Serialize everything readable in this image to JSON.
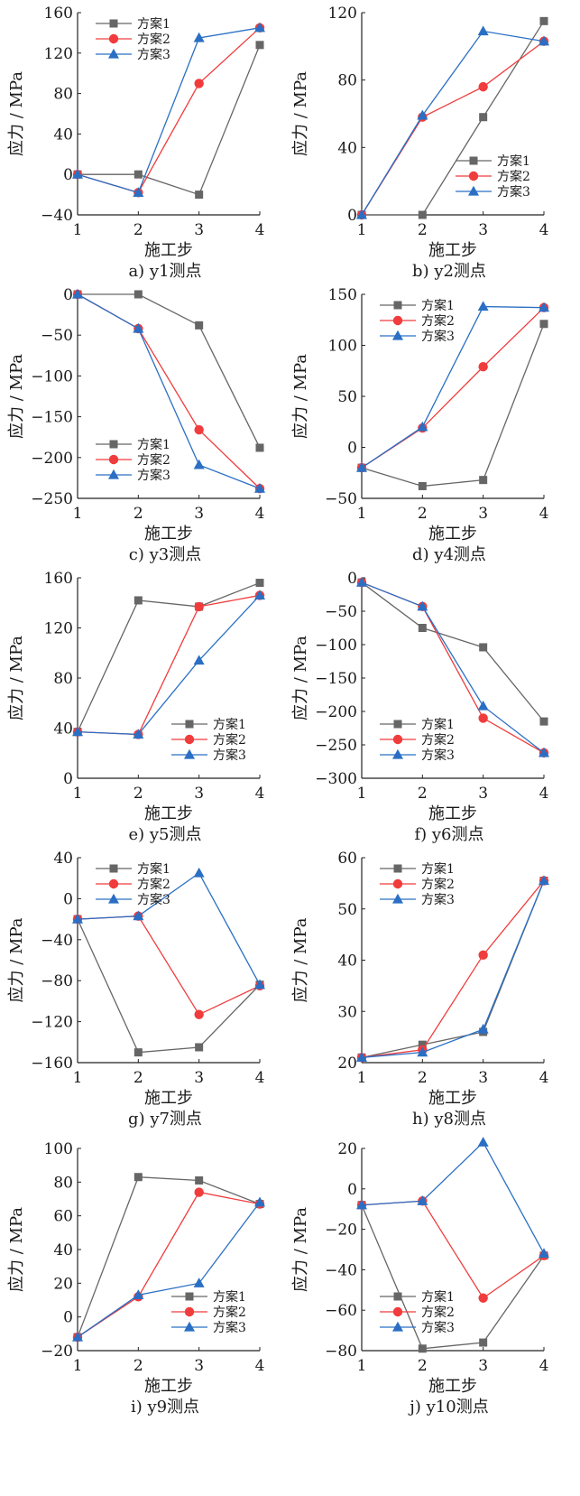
{
  "common": {
    "xlabel": "施工步",
    "ylabel": "应力 / MPa",
    "x": [
      1,
      2,
      3,
      4
    ],
    "series_names": [
      "方案1",
      "方案2",
      "方案3"
    ],
    "colors": [
      "#666666",
      "#f03c3c",
      "#2a6fc4"
    ],
    "markers": [
      "square",
      "circle",
      "triangle"
    ]
  },
  "chart_data": [
    {
      "type": "line",
      "caption": "a) y1测点",
      "xlabel": "施工步",
      "ylabel": "应力 / MPa",
      "ylim": [
        -40,
        160
      ],
      "yticks": [
        -40,
        0,
        40,
        80,
        120,
        160
      ],
      "legend": "top-left",
      "series": [
        {
          "name": "方案1",
          "values": [
            0,
            0,
            -20,
            128
          ]
        },
        {
          "name": "方案2",
          "values": [
            0,
            -18,
            90,
            145
          ]
        },
        {
          "name": "方案3",
          "values": [
            0,
            -18,
            135,
            145
          ]
        }
      ]
    },
    {
      "type": "line",
      "caption": "b) y2测点",
      "xlabel": "施工步",
      "ylabel": "应力 / MPa",
      "ylim": [
        0,
        120
      ],
      "yticks": [
        0,
        40,
        80,
        120
      ],
      "legend": "bottom-right",
      "series": [
        {
          "name": "方案1",
          "values": [
            0,
            0,
            58,
            115
          ]
        },
        {
          "name": "方案2",
          "values": [
            0,
            58,
            76,
            103
          ]
        },
        {
          "name": "方案3",
          "values": [
            0,
            59,
            109,
            103
          ]
        }
      ]
    },
    {
      "type": "line",
      "caption": "c) y3测点",
      "xlabel": "施工步",
      "ylabel": "应力 / MPa",
      "ylim": [
        -250,
        0
      ],
      "yticks": [
        -250,
        -200,
        -150,
        -100,
        -50,
        0
      ],
      "legend": "bottom-left",
      "series": [
        {
          "name": "方案1",
          "values": [
            0,
            0,
            -38,
            -188
          ]
        },
        {
          "name": "方案2",
          "values": [
            0,
            -42,
            -166,
            -238
          ]
        },
        {
          "name": "方案3",
          "values": [
            0,
            -42,
            -209,
            -238
          ]
        }
      ]
    },
    {
      "type": "line",
      "caption": "d) y4测点",
      "xlabel": "施工步",
      "ylabel": "应力 / MPa",
      "ylim": [
        -50,
        150
      ],
      "yticks": [
        -50,
        0,
        50,
        100,
        150
      ],
      "legend": "top-left",
      "series": [
        {
          "name": "方案1",
          "values": [
            -20,
            -38,
            -32,
            121
          ]
        },
        {
          "name": "方案2",
          "values": [
            -20,
            19,
            79,
            137
          ]
        },
        {
          "name": "方案3",
          "values": [
            -20,
            20,
            138,
            137
          ]
        }
      ]
    },
    {
      "type": "line",
      "caption": "e) y5测点",
      "xlabel": "施工步",
      "ylabel": "应力 / MPa",
      "ylim": [
        0,
        160
      ],
      "yticks": [
        0,
        40,
        80,
        120,
        160
      ],
      "legend": "bottom-right",
      "series": [
        {
          "name": "方案1",
          "values": [
            37,
            142,
            137,
            156
          ]
        },
        {
          "name": "方案2",
          "values": [
            37,
            35,
            137,
            146
          ]
        },
        {
          "name": "方案3",
          "values": [
            37,
            35,
            94,
            146
          ]
        }
      ]
    },
    {
      "type": "line",
      "caption": "f) y6测点",
      "xlabel": "施工步",
      "ylabel": "应力 / MPa",
      "ylim": [
        -300,
        0
      ],
      "yticks": [
        -300,
        -250,
        -200,
        -150,
        -100,
        -50,
        0
      ],
      "legend": "bottom-left",
      "series": [
        {
          "name": "方案1",
          "values": [
            -7,
            -75,
            -104,
            -215
          ]
        },
        {
          "name": "方案2",
          "values": [
            -7,
            -43,
            -210,
            -262
          ]
        },
        {
          "name": "方案3",
          "values": [
            -7,
            -43,
            -192,
            -262
          ]
        }
      ]
    },
    {
      "type": "line",
      "caption": "g) y7测点",
      "xlabel": "施工步",
      "ylabel": "应力 / MPa",
      "ylim": [
        -160,
        40
      ],
      "yticks": [
        -160,
        -120,
        -80,
        -40,
        0,
        40
      ],
      "legend": "top-left",
      "series": [
        {
          "name": "方案1",
          "values": [
            -20,
            -150,
            -145,
            -84
          ]
        },
        {
          "name": "方案2",
          "values": [
            -20,
            -17,
            -113,
            -85
          ]
        },
        {
          "name": "方案3",
          "values": [
            -20,
            -17,
            25,
            -84
          ]
        }
      ]
    },
    {
      "type": "line",
      "caption": "h) y8测点",
      "xlabel": "施工步",
      "ylabel": "应力 / MPa",
      "ylim": [
        20,
        60
      ],
      "yticks": [
        20,
        30,
        40,
        50,
        60
      ],
      "legend": "top-left",
      "series": [
        {
          "name": "方案1",
          "values": [
            21,
            23.5,
            26,
            55.5
          ]
        },
        {
          "name": "方案2",
          "values": [
            21,
            22.5,
            41,
            55.5
          ]
        },
        {
          "name": "方案3",
          "values": [
            21,
            22,
            26.5,
            55.5
          ]
        }
      ]
    },
    {
      "type": "line",
      "caption": "i) y9测点",
      "xlabel": "施工步",
      "ylabel": "应力 / MPa",
      "ylim": [
        -20,
        100
      ],
      "yticks": [
        -20,
        0,
        20,
        40,
        60,
        80,
        100
      ],
      "legend": "bottom-right",
      "series": [
        {
          "name": "方案1",
          "values": [
            -12,
            83,
            81,
            67
          ]
        },
        {
          "name": "方案2",
          "values": [
            -12,
            12,
            74,
            67
          ]
        },
        {
          "name": "方案3",
          "values": [
            -12,
            13,
            20,
            68
          ]
        }
      ]
    },
    {
      "type": "line",
      "caption": "j) y10测点",
      "xlabel": "施工步",
      "ylabel": "应力 / MPa",
      "ylim": [
        -80,
        20
      ],
      "yticks": [
        -80,
        -60,
        -40,
        -20,
        0,
        20
      ],
      "legend": "bottom-left",
      "series": [
        {
          "name": "方案1",
          "values": [
            -8,
            -79,
            -76,
            -33
          ]
        },
        {
          "name": "方案2",
          "values": [
            -8,
            -6,
            -54,
            -33
          ]
        },
        {
          "name": "方案3",
          "values": [
            -8,
            -6,
            23,
            -32
          ]
        }
      ]
    }
  ]
}
